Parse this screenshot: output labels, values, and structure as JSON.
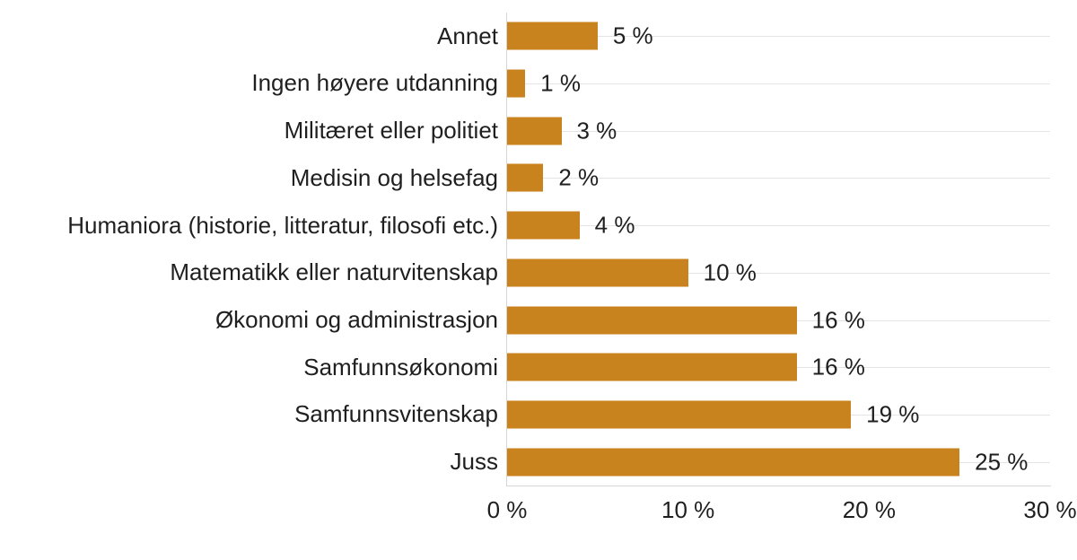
{
  "chart_data": {
    "type": "bar",
    "orientation": "horizontal",
    "title": "",
    "categories": [
      "Annet",
      "Ingen høyere utdanning",
      "Militæret eller politiet",
      "Medisin og helsefag",
      "Humaniora (historie, litteratur, filosofi etc.)",
      "Matematikk eller naturvitenskap",
      "Økonomi og administrasjon",
      "Samfunnsøkonomi",
      "Samfunnsvitenskap",
      "Juss"
    ],
    "values": [
      5,
      1,
      3,
      2,
      4,
      10,
      16,
      16,
      19,
      25
    ],
    "value_labels": [
      "5 %",
      "1 %",
      "3 %",
      "2 %",
      "4 %",
      "10 %",
      "16 %",
      "16 %",
      "19 %",
      "25 %"
    ],
    "x_axis": {
      "max": 30,
      "ticks": [
        {
          "value": 0,
          "label": "0 %"
        },
        {
          "value": 10,
          "label": "10 %"
        },
        {
          "value": 20,
          "label": "20 %"
        },
        {
          "value": 30,
          "label": "30 %"
        }
      ]
    },
    "grid": "horizontal-category-lines",
    "legend": null,
    "colors": {
      "bar": "#c8821e",
      "grid": "#e4e4e4",
      "axis": "#d6d6d6",
      "text": "#1f1f1f",
      "background": "#ffffff"
    }
  }
}
